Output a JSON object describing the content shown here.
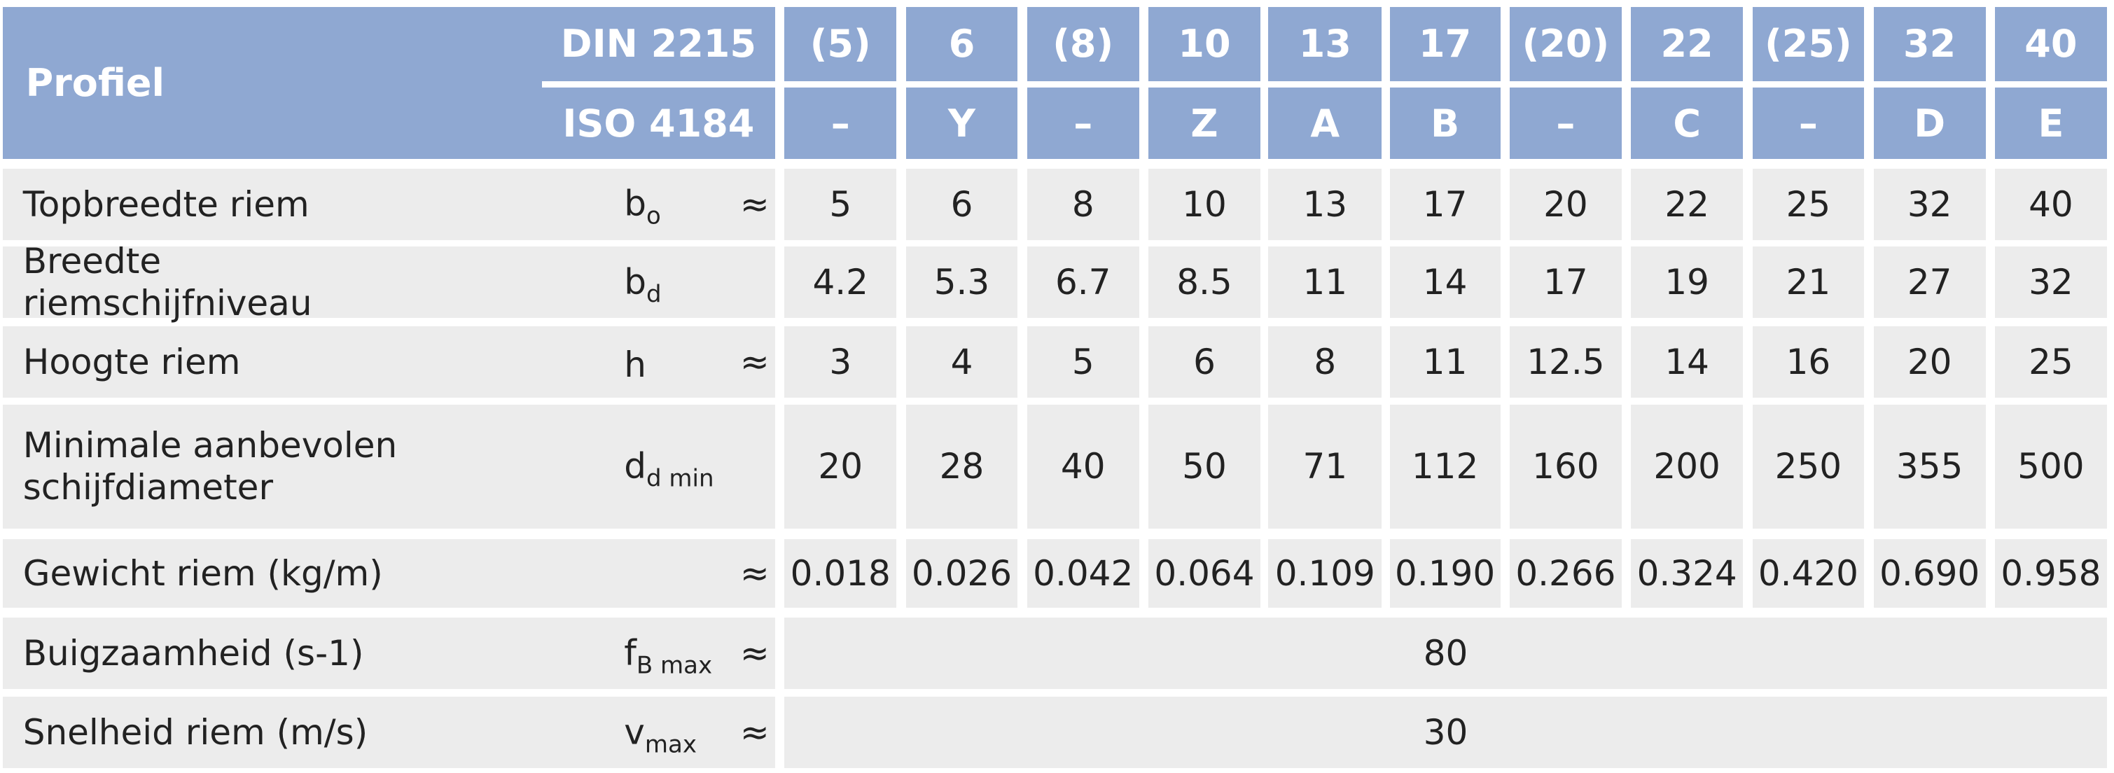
{
  "header": {
    "profiel": "Profiel",
    "din": "DIN 2215",
    "iso": "ISO 4184",
    "din_sizes": [
      "(5)",
      "6",
      "(8)",
      "10",
      "13",
      "17",
      "(20)",
      "22",
      "(25)",
      "32",
      "40"
    ],
    "iso_sizes": [
      "–",
      "Y",
      "–",
      "Z",
      "A",
      "B",
      "–",
      "C",
      "–",
      "D",
      "E"
    ]
  },
  "rows": [
    {
      "label": "Topbreedte riem",
      "symbol": {
        "base": "b",
        "sub": "o"
      },
      "approx": "≈",
      "values": [
        "5",
        "6",
        "8",
        "10",
        "13",
        "17",
        "20",
        "22",
        "25",
        "32",
        "40"
      ]
    },
    {
      "label": "Breedte riemschijfniveau",
      "symbol": {
        "base": "b",
        "sub": "d"
      },
      "values": [
        "4.2",
        "5.3",
        "6.7",
        "8.5",
        "11",
        "14",
        "17",
        "19",
        "21",
        "27",
        "32"
      ]
    },
    {
      "label": "Hoogte riem",
      "symbol": {
        "base": "h"
      },
      "approx": "≈",
      "values": [
        "3",
        "4",
        "5",
        "6",
        "8",
        "11",
        "12.5",
        "14",
        "16",
        "20",
        "25"
      ]
    },
    {
      "label": "Minimale aanbevolen schijfdiameter",
      "symbol": {
        "base": "d",
        "sub": "d min"
      },
      "values": [
        "20",
        "28",
        "40",
        "50",
        "71",
        "112",
        "160",
        "200",
        "250",
        "355",
        "500"
      ]
    },
    {
      "label": "Gewicht riem (kg/m)",
      "approx": "≈",
      "values": [
        "0.018",
        "0.026",
        "0.042",
        "0.064",
        "0.109",
        "0.190",
        "0.266",
        "0.324",
        "0.420",
        "0.690",
        "0.958"
      ]
    },
    {
      "label": "Buigzaamheid (s-1)",
      "symbol": {
        "base": "f",
        "sub": "B max"
      },
      "approx": "≈",
      "values": [
        "80"
      ]
    },
    {
      "label": "Snelheid riem (m/s)",
      "symbol": {
        "base": "v",
        "sub": "max"
      },
      "approx": "≈",
      "values": [
        "30"
      ]
    }
  ]
}
